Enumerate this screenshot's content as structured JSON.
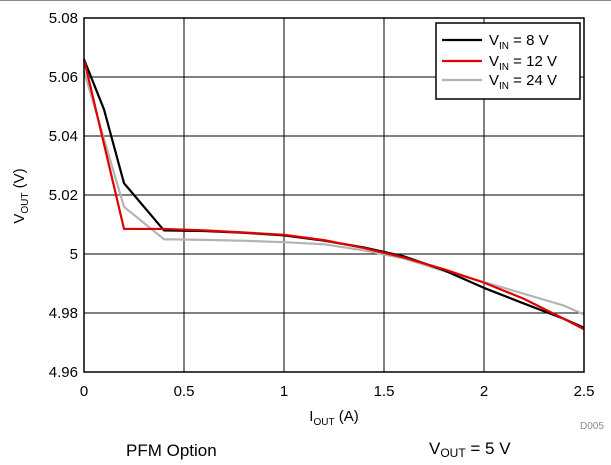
{
  "chart_data": {
    "type": "line",
    "xlabel": {
      "main": "I",
      "sub": "OUT",
      "rest": " (A)"
    },
    "ylabel": {
      "main": "V",
      "sub": "OUT",
      "rest": " (V)"
    },
    "xlim": [
      0,
      2.5
    ],
    "ylim": [
      4.96,
      5.08
    ],
    "x_ticks": [
      0,
      0.5,
      1,
      1.5,
      2,
      2.5
    ],
    "y_ticks": [
      4.96,
      4.98,
      5,
      5.02,
      5.04,
      5.06,
      5.08
    ],
    "x_tick_labels": [
      "0",
      "0.5",
      "1",
      "1.5",
      "2",
      "2.5"
    ],
    "y_tick_labels": [
      "4.96",
      "4.98",
      "5",
      "5.02",
      "5.04",
      "5.06",
      "5.08"
    ],
    "grid": true,
    "legend_position": "top-right",
    "series": [
      {
        "name": {
          "main": "V",
          "sub": "IN",
          "rest": " = 8 V"
        },
        "color": "#000000",
        "x": [
          0,
          0.1,
          0.2,
          0.4,
          0.6,
          0.8,
          1.0,
          1.2,
          1.4,
          1.6,
          1.8,
          2.0,
          2.2,
          2.4,
          2.5
        ],
        "y": [
          5.066,
          5.049,
          5.024,
          5.008,
          5.0078,
          5.0072,
          5.0063,
          5.0045,
          5.0022,
          4.9992,
          4.9945,
          4.9885,
          4.9832,
          4.978,
          4.975
        ]
      },
      {
        "name": {
          "main": "V",
          "sub": "IN",
          "rest": " = 12 V"
        },
        "color": "#e00000",
        "x": [
          0,
          0.2,
          0.4,
          0.6,
          0.8,
          1.0,
          1.2,
          1.4,
          1.6,
          1.8,
          2.0,
          2.2,
          2.4,
          2.5
        ],
        "y": [
          5.066,
          5.0085,
          5.0085,
          5.008,
          5.0073,
          5.0065,
          5.0047,
          5.002,
          4.9988,
          4.9948,
          4.9903,
          4.9848,
          4.978,
          4.9745
        ]
      },
      {
        "name": {
          "main": "V",
          "sub": "IN",
          "rest": " = 24 V"
        },
        "color": "#b4b4b4",
        "x": [
          0,
          0.2,
          0.4,
          0.6,
          0.8,
          1.0,
          1.2,
          1.4,
          1.6,
          1.8,
          2.0,
          2.2,
          2.4,
          2.5
        ],
        "y": [
          5.062,
          5.016,
          5.005,
          5.0048,
          5.0045,
          5.004,
          5.0033,
          5.0012,
          4.9985,
          4.9942,
          4.9905,
          4.9865,
          4.9825,
          4.9795
        ]
      }
    ],
    "annotation_id": "D005"
  },
  "captions": {
    "left": "PFM Option",
    "right": {
      "main": "V",
      "sub": "OUT",
      "rest": " = 5 V"
    }
  }
}
